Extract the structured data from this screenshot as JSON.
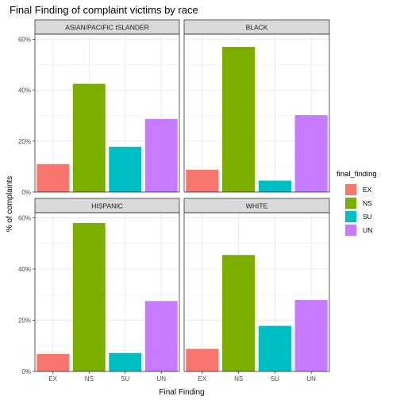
{
  "chart_data": {
    "type": "bar",
    "title": "Final Finding of complaint victims by race",
    "xlabel": "Final Finding",
    "ylabel": "% of complaints",
    "categories": [
      "EX",
      "NS",
      "SU",
      "UN"
    ],
    "ylim": [
      0,
      0.62
    ],
    "yticks": [
      0,
      0.2,
      0.4,
      0.6
    ],
    "ytick_labels": [
      "0%",
      "20%",
      "40%",
      "60%"
    ],
    "grid": true,
    "legend": {
      "title": "final_finding",
      "placement": "right",
      "entries": [
        "EX",
        "NS",
        "SU",
        "UN"
      ]
    },
    "colors": {
      "EX": "#F8766D",
      "NS": "#7CAE00",
      "SU": "#00BFC4",
      "UN": "#C77CFF"
    },
    "panels": [
      {
        "name": "ASIAN/PACIFIC ISLANDER",
        "values": [
          0.11,
          0.425,
          0.178,
          0.287
        ]
      },
      {
        "name": "BLACK",
        "values": [
          0.088,
          0.57,
          0.045,
          0.302
        ]
      },
      {
        "name": "HISPANIC",
        "values": [
          0.068,
          0.58,
          0.072,
          0.275
        ]
      },
      {
        "name": "WHITE",
        "values": [
          0.088,
          0.455,
          0.178,
          0.279
        ]
      }
    ]
  }
}
